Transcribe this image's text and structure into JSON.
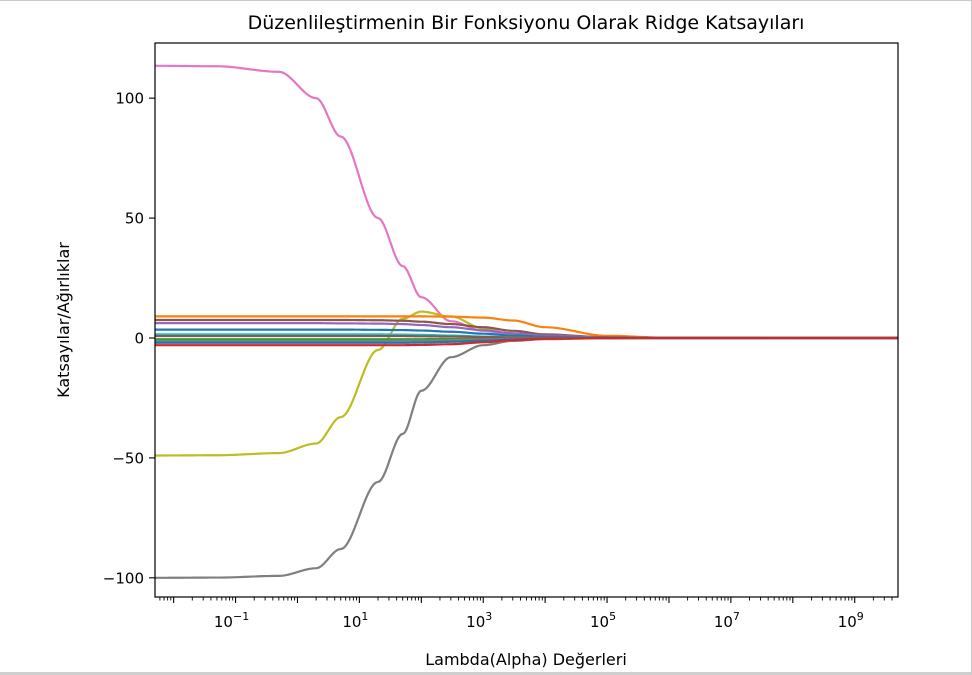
{
  "chart_data": {
    "type": "line",
    "title": "Düzenlileştirmenin Bir Fonksiyonu Olarak Ridge Katsayıları",
    "xlabel": "Lambda(Alpha) Değerleri",
    "ylabel": "Katsayılar/Ağırlıklar",
    "x_scale": "log",
    "xlim": [
      0.005,
      5000000000
    ],
    "ylim": [
      -108,
      123
    ],
    "x_ticks": [
      {
        "value": 0.1,
        "base": "10",
        "exp": "−1"
      },
      {
        "value": 10,
        "base": "10",
        "exp": "1"
      },
      {
        "value": 1000,
        "base": "10",
        "exp": "3"
      },
      {
        "value": 100000,
        "base": "10",
        "exp": "5"
      },
      {
        "value": 10000000,
        "base": "10",
        "exp": "7"
      },
      {
        "value": 1000000000,
        "base": "10",
        "exp": "9"
      }
    ],
    "y_ticks": [
      {
        "value": 100,
        "label": "100"
      },
      {
        "value": 50,
        "label": "50"
      },
      {
        "value": 0,
        "label": "0"
      },
      {
        "value": -50,
        "label": "−50"
      },
      {
        "value": -100,
        "label": "−100"
      }
    ],
    "x": [
      0.005,
      0.05,
      0.5,
      2,
      5,
      20,
      50,
      100,
      300,
      1000,
      3000,
      10000,
      100000,
      1000000,
      5000000000
    ],
    "series": [
      {
        "color": "#e377c2",
        "values": [
          113.5,
          113.3,
          111,
          100,
          84,
          50,
          30,
          17,
          7,
          3,
          1.5,
          0.8,
          0.2,
          0.05,
          0
        ]
      },
      {
        "color": "#7f7f7f",
        "values": [
          -100,
          -99.9,
          -99.2,
          -96,
          -88,
          -60,
          -40,
          -22,
          -8,
          -3,
          -1.2,
          -0.5,
          -0.1,
          0,
          0
        ]
      },
      {
        "color": "#bcbd22",
        "values": [
          -49,
          -48.9,
          -48,
          -44,
          -33,
          -5,
          8,
          11,
          9,
          4,
          1.5,
          0.6,
          0.1,
          0,
          0
        ]
      },
      {
        "color": "#ff7f0e",
        "values": [
          9,
          9,
          9,
          9,
          9,
          9,
          9,
          9,
          8.9,
          8.5,
          7.3,
          4.5,
          0.9,
          0.1,
          0
        ]
      },
      {
        "color": "#8c564b",
        "values": [
          7.5,
          7.5,
          7.5,
          7.5,
          7.5,
          7.4,
          7.2,
          6.8,
          5.8,
          4.5,
          3,
          1.5,
          0.3,
          0.05,
          0
        ]
      },
      {
        "color": "#9467bd",
        "values": [
          6.2,
          6.2,
          6.2,
          6.2,
          6.1,
          6,
          5.8,
          5.4,
          4.5,
          3.2,
          2,
          1,
          0.2,
          0.02,
          0
        ]
      },
      {
        "color": "#1f77b4",
        "values": [
          3.5,
          3.5,
          3.5,
          3.5,
          3.5,
          3.4,
          3.3,
          3.1,
          2.6,
          1.8,
          1,
          0.5,
          0.1,
          0,
          0
        ]
      },
      {
        "color": "#17becf",
        "values": [
          1.5,
          1.5,
          1.5,
          1.5,
          1.5,
          1.5,
          1.4,
          1.3,
          1,
          0.6,
          0.3,
          0.1,
          0.02,
          0,
          0
        ]
      },
      {
        "color": "#2ca02c",
        "values": [
          -0.5,
          -0.5,
          -0.5,
          -0.5,
          -0.5,
          -0.5,
          -0.5,
          -0.5,
          -0.4,
          -0.3,
          -0.2,
          -0.1,
          0,
          0,
          0
        ]
      },
      {
        "color": "#8c564b",
        "values": [
          0.8,
          0.8,
          0.8,
          0.8,
          0.8,
          0.8,
          0.8,
          0.7,
          0.6,
          0.4,
          0.2,
          0.1,
          0,
          0,
          0
        ]
      },
      {
        "color": "#7f7f7f",
        "values": [
          -1.2,
          -1.2,
          -1.2,
          -1.2,
          -1.2,
          -1.2,
          -1.1,
          -1.1,
          -0.9,
          -0.6,
          -0.3,
          -0.1,
          0,
          0,
          0
        ]
      },
      {
        "color": "#1f77b4",
        "values": [
          -2,
          -2,
          -2,
          -2,
          -2,
          -2,
          -2,
          -1.9,
          -1.6,
          -1.1,
          -0.6,
          -0.2,
          0,
          0,
          0
        ]
      },
      {
        "color": "#d62728",
        "values": [
          -3,
          -3,
          -3,
          -3,
          -3,
          -3,
          -3,
          -2.9,
          -2.6,
          -1.8,
          -0.9,
          -0.3,
          -0.05,
          0,
          0
        ]
      }
    ]
  }
}
